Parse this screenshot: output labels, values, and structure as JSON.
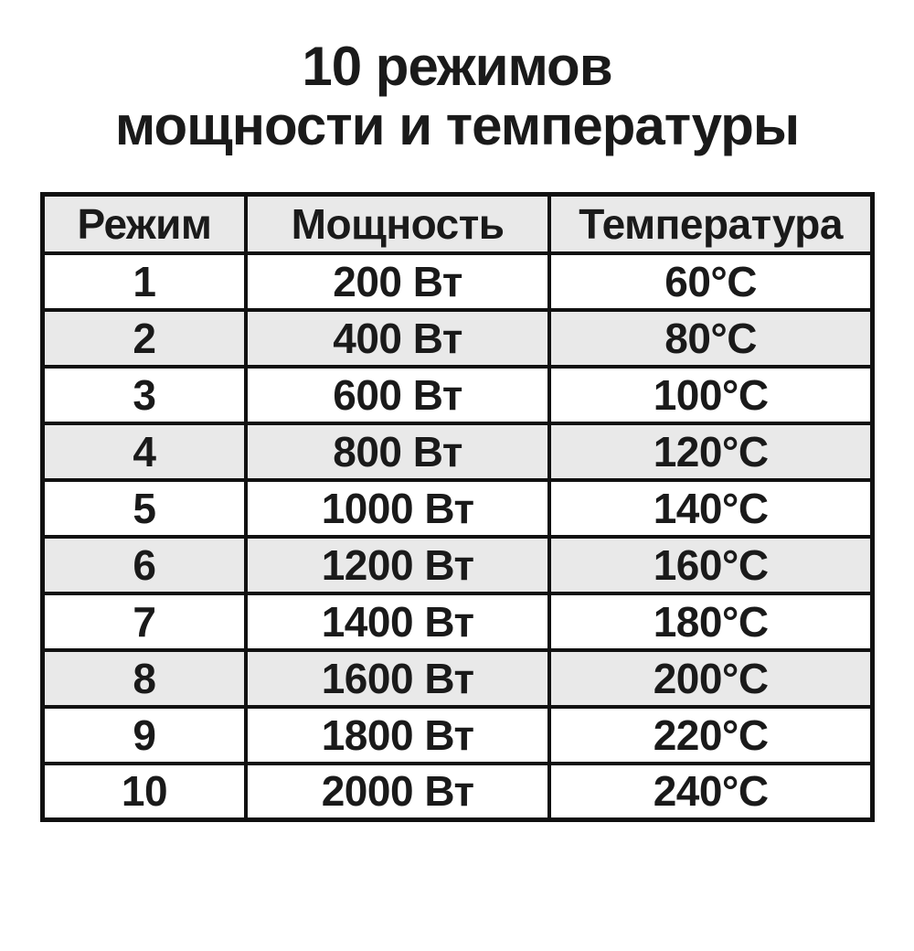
{
  "title": {
    "line1": "10 режимов",
    "line2": "мощности и температуры"
  },
  "table": {
    "columns": [
      "Режим",
      "Мощность",
      "Температура"
    ],
    "rows": [
      {
        "mode": "1",
        "power": "200 Вт",
        "temperature": "60°C",
        "shaded": false
      },
      {
        "mode": "2",
        "power": "400 Вт",
        "temperature": "80°C",
        "shaded": true
      },
      {
        "mode": "3",
        "power": "600 Вт",
        "temperature": "100°C",
        "shaded": false
      },
      {
        "mode": "4",
        "power": "800 Вт",
        "temperature": "120°C",
        "shaded": true
      },
      {
        "mode": "5",
        "power": "1000 Вт",
        "temperature": "140°C",
        "shaded": false
      },
      {
        "mode": "6",
        "power": "1200 Вт",
        "temperature": "160°C",
        "shaded": true
      },
      {
        "mode": "7",
        "power": "1400 Вт",
        "temperature": "180°C",
        "shaded": false
      },
      {
        "mode": "8",
        "power": "1600 Вт",
        "temperature": "200°C",
        "shaded": true
      },
      {
        "mode": "9",
        "power": "1800 Вт",
        "temperature": "220°C",
        "shaded": false
      },
      {
        "mode": "10",
        "power": "2000 Вт",
        "temperature": "240°C",
        "shaded": false
      }
    ]
  },
  "colors": {
    "border": "#111111",
    "text": "#1a1a1a",
    "shade": "#e9e9e9",
    "background": "#ffffff"
  }
}
